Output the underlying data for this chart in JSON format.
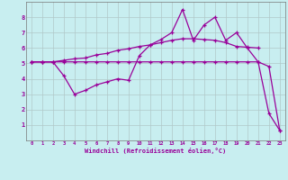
{
  "x": [
    0,
    1,
    2,
    3,
    4,
    5,
    6,
    7,
    8,
    9,
    10,
    11,
    12,
    13,
    14,
    15,
    16,
    17,
    18,
    19,
    20,
    21,
    22,
    23
  ],
  "line1": [
    5.1,
    5.1,
    5.1,
    5.1,
    5.1,
    5.1,
    5.1,
    5.1,
    5.1,
    5.1,
    5.1,
    5.1,
    5.1,
    5.1,
    5.1,
    5.1,
    5.1,
    5.1,
    5.1,
    5.1,
    5.1,
    5.1,
    4.8,
    0.65
  ],
  "line2": [
    5.1,
    5.1,
    5.1,
    5.2,
    5.3,
    5.35,
    5.55,
    5.65,
    5.85,
    5.95,
    6.1,
    6.2,
    6.35,
    6.5,
    6.6,
    6.6,
    6.55,
    6.5,
    6.35,
    6.1,
    6.05,
    6.0,
    null,
    null
  ],
  "line3": [
    5.1,
    5.1,
    5.1,
    4.2,
    3.0,
    3.25,
    3.6,
    3.8,
    4.0,
    3.9,
    5.5,
    6.2,
    6.55,
    7.0,
    8.5,
    6.5,
    7.5,
    8.0,
    6.5,
    7.0,
    6.0,
    5.1,
    1.75,
    0.65
  ],
  "color": "#990099",
  "bg_color": "#c8eef0",
  "xlabel": "Windchill (Refroidissement éolien,°C)",
  "ylim": [
    0,
    9
  ],
  "xlim": [
    -0.5,
    23.5
  ],
  "yticks": [
    1,
    2,
    3,
    4,
    5,
    6,
    7,
    8
  ],
  "xticks": [
    0,
    1,
    2,
    3,
    4,
    5,
    6,
    7,
    8,
    9,
    10,
    11,
    12,
    13,
    14,
    15,
    16,
    17,
    18,
    19,
    20,
    21,
    22,
    23
  ],
  "grid_color": "#b0c8c8",
  "marker": "+"
}
